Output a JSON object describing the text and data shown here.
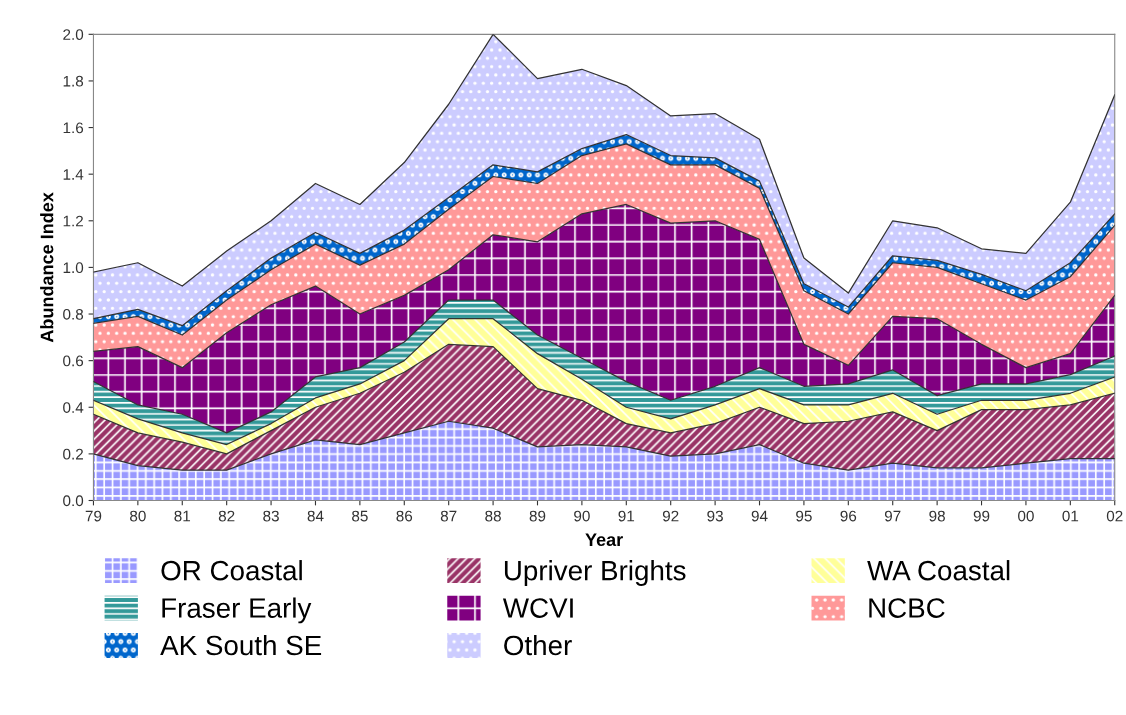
{
  "chart_data": {
    "type": "area",
    "stacked": true,
    "xlabel": "Year",
    "ylabel": "Abundance Index",
    "categories": [
      "79",
      "80",
      "81",
      "82",
      "83",
      "84",
      "85",
      "86",
      "87",
      "88",
      "89",
      "90",
      "91",
      "92",
      "93",
      "94",
      "95",
      "96",
      "97",
      "98",
      "99",
      "00",
      "01",
      "02"
    ],
    "ylim": [
      0,
      2.0
    ],
    "yticks": [
      {
        "value": 0,
        "label": "0.0"
      },
      0.2,
      0.4,
      0.6,
      0.8,
      {
        "value": 1.0,
        "label": "1.0"
      },
      1.2,
      1.4,
      1.6,
      1.8,
      {
        "value": 2.0,
        "label": "2.0"
      }
    ],
    "grid": false,
    "legend": "bottom",
    "series": [
      {
        "name": "OR Coastal",
        "color": "#9999ff",
        "values": [
          0.2,
          0.15,
          0.13,
          0.13,
          0.2,
          0.26,
          0.24,
          0.29,
          0.34,
          0.31,
          0.23,
          0.24,
          0.23,
          0.19,
          0.2,
          0.24,
          0.16,
          0.13,
          0.16,
          0.14,
          0.14,
          0.16,
          0.18,
          0.18
        ]
      },
      {
        "name": "Upriver Brights",
        "color": "#993366",
        "values": [
          0.17,
          0.14,
          0.12,
          0.07,
          0.1,
          0.14,
          0.22,
          0.26,
          0.33,
          0.35,
          0.25,
          0.19,
          0.1,
          0.1,
          0.13,
          0.16,
          0.17,
          0.21,
          0.22,
          0.16,
          0.25,
          0.23,
          0.23,
          0.28
        ]
      },
      {
        "name": "WA Coastal",
        "color": "#ffff99",
        "values": [
          0.06,
          0.06,
          0.04,
          0.04,
          0.03,
          0.04,
          0.04,
          0.05,
          0.11,
          0.12,
          0.15,
          0.09,
          0.07,
          0.06,
          0.08,
          0.08,
          0.08,
          0.07,
          0.08,
          0.07,
          0.04,
          0.04,
          0.05,
          0.07
        ]
      },
      {
        "name": "Fraser Early",
        "color": "#339999",
        "values": [
          0.08,
          0.06,
          0.08,
          0.05,
          0.05,
          0.09,
          0.07,
          0.08,
          0.08,
          0.08,
          0.08,
          0.09,
          0.11,
          0.08,
          0.08,
          0.09,
          0.08,
          0.09,
          0.1,
          0.08,
          0.07,
          0.07,
          0.08,
          0.09
        ]
      },
      {
        "name": "WCVI",
        "color": "#800080",
        "values": [
          0.13,
          0.25,
          0.2,
          0.43,
          0.46,
          0.39,
          0.23,
          0.2,
          0.13,
          0.28,
          0.4,
          0.62,
          0.76,
          0.76,
          0.71,
          0.55,
          0.18,
          0.08,
          0.23,
          0.33,
          0.17,
          0.07,
          0.09,
          0.26
        ]
      },
      {
        "name": "NCBC",
        "color": "#ff9999",
        "values": [
          0.12,
          0.13,
          0.14,
          0.14,
          0.15,
          0.18,
          0.21,
          0.22,
          0.26,
          0.25,
          0.25,
          0.25,
          0.26,
          0.25,
          0.24,
          0.22,
          0.23,
          0.22,
          0.23,
          0.22,
          0.26,
          0.29,
          0.33,
          0.3
        ]
      },
      {
        "name": "AK South SE",
        "color": "#0066cc",
        "values": [
          0.02,
          0.03,
          0.04,
          0.04,
          0.05,
          0.05,
          0.05,
          0.06,
          0.05,
          0.05,
          0.05,
          0.03,
          0.04,
          0.04,
          0.03,
          0.03,
          0.03,
          0.03,
          0.03,
          0.03,
          0.04,
          0.04,
          0.06,
          0.05
        ]
      },
      {
        "name": "Other",
        "color": "#ccccff",
        "values": [
          0.2,
          0.2,
          0.17,
          0.17,
          0.16,
          0.21,
          0.21,
          0.29,
          0.4,
          0.56,
          0.4,
          0.34,
          0.21,
          0.17,
          0.19,
          0.18,
          0.11,
          0.06,
          0.15,
          0.14,
          0.11,
          0.16,
          0.26,
          0.51
        ]
      }
    ]
  }
}
